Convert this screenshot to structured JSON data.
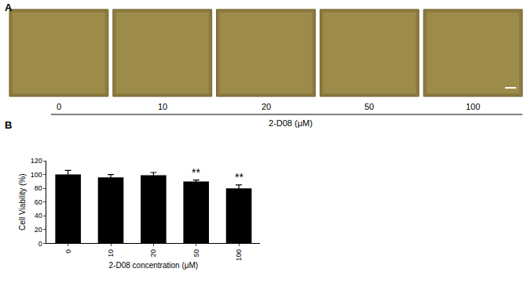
{
  "chart_data": {
    "type": "bar",
    "categories": [
      "0",
      "10",
      "20",
      "50",
      "100"
    ],
    "values": [
      100,
      96,
      99,
      90,
      80
    ],
    "errors": [
      6,
      4,
      4,
      2,
      5
    ],
    "color": "#000000",
    "xlabel": "2-D08 concentration (μM)",
    "ylabel": "Cell Viability (%)",
    "ylim": [
      0,
      120
    ],
    "yticks": [
      0,
      20,
      40,
      60,
      80,
      100,
      120
    ],
    "grid": false,
    "annotations": [
      {
        "category": "50",
        "text": "**"
      },
      {
        "category": "100",
        "text": "**"
      }
    ]
  },
  "figure": {
    "panel_labels": [
      "A",
      "B"
    ],
    "images": {
      "labels": [
        "0",
        "10",
        "20",
        "50",
        "100"
      ],
      "caption": "2-D08 (μM)"
    }
  }
}
